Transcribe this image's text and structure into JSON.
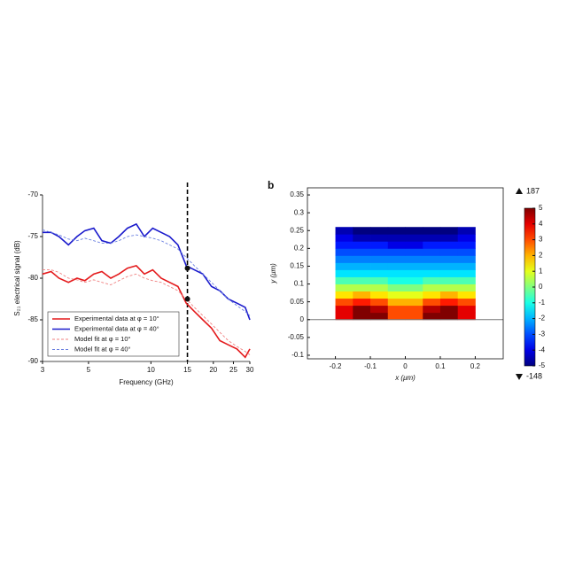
{
  "chart_data": [
    {
      "type": "line",
      "xlabel": "Frequency (GHz)",
      "ylabel": "S₂₁ electrical signal (dB)",
      "x": [
        3,
        3.3,
        3.6,
        4,
        4.4,
        4.8,
        5.3,
        5.8,
        6.4,
        7,
        7.7,
        8.5,
        9.3,
        10.2,
        11.2,
        12.3,
        13.5,
        14.8,
        16.2,
        17.8,
        19.6,
        21.5,
        23.6,
        26,
        28.5,
        30
      ],
      "log_x": true,
      "xlim": [
        3,
        30
      ],
      "xticks": [
        3,
        5,
        10,
        15,
        20,
        25,
        30
      ],
      "ylim": [
        -90,
        -70
      ],
      "yticks": [
        -90,
        -85,
        -80,
        -75,
        -70
      ],
      "legend": "lower left",
      "vline": 15,
      "markers": [
        {
          "x": 15,
          "y": -78.8
        },
        {
          "x": 15,
          "y": -82.5
        }
      ],
      "series": [
        {
          "name": "Experimental data at φ = 10°",
          "color": "#e41a1c",
          "dashed": false,
          "values": [
            -79.5,
            -79.2,
            -80,
            -80.5,
            -80,
            -80.3,
            -79.5,
            -79.2,
            -80,
            -79.5,
            -78.8,
            -78.5,
            -79.5,
            -79,
            -80,
            -80.5,
            -81,
            -83,
            -84,
            -85,
            -86,
            -87.5,
            -88,
            -88.5,
            -89.5,
            -88.5
          ]
        },
        {
          "name": "Experimental data at φ = 40°",
          "color": "#1a1acc",
          "dashed": false,
          "values": [
            -74.5,
            -74.5,
            -75,
            -76,
            -75,
            -74.3,
            -74,
            -75.5,
            -75.8,
            -75,
            -74,
            -73.5,
            -75,
            -74,
            -74.5,
            -75,
            -76,
            -78.5,
            -79,
            -79.5,
            -81,
            -81.5,
            -82.5,
            -83,
            -83.5,
            -85
          ]
        },
        {
          "name": "Model fit at φ = 10°",
          "color": "#f08080",
          "dashed": true,
          "values": [
            -79,
            -79,
            -79.3,
            -80,
            -80.2,
            -80.5,
            -80.2,
            -80.5,
            -80.8,
            -80.3,
            -79.8,
            -79.5,
            -80,
            -80.3,
            -80.5,
            -81,
            -81.5,
            -82.5,
            -83.5,
            -84.5,
            -85.5,
            -86.5,
            -87.5,
            -88.2,
            -88.8,
            -89.2
          ]
        },
        {
          "name": "Model fit at φ = 40°",
          "color": "#6a7fe0",
          "dashed": true,
          "values": [
            -74.2,
            -74.5,
            -74.8,
            -75.3,
            -75.5,
            -75.2,
            -75.5,
            -75.8,
            -75.8,
            -75.5,
            -75,
            -74.8,
            -75,
            -75.2,
            -75.5,
            -76,
            -76.5,
            -77.5,
            -78.5,
            -79.5,
            -80.5,
            -81.5,
            -82.5,
            -83.3,
            -84,
            -84.5
          ]
        }
      ]
    },
    {
      "type": "heatmap",
      "panel_label": "b",
      "xlabel": "x (μm)",
      "ylabel": "y (μm)",
      "xlim": [
        -0.28,
        0.28
      ],
      "xticks": [
        -0.2,
        -0.1,
        0,
        0.1,
        0.2
      ],
      "ylim": [
        -0.11,
        0.37
      ],
      "yticks": [
        -0.1,
        -0.05,
        0,
        0.05,
        0.1,
        0.15,
        0.2,
        0.25,
        0.3,
        0.35
      ],
      "x": [
        -0.175,
        -0.125,
        -0.075,
        -0.025,
        0.025,
        0.075,
        0.125,
        0.175
      ],
      "y": [
        0.01,
        0.03,
        0.05,
        0.07,
        0.09,
        0.11,
        0.13,
        0.15,
        0.17,
        0.19,
        0.21,
        0.23,
        0.25
      ],
      "values": [
        [
          4,
          5,
          5,
          3,
          3,
          5,
          5,
          4
        ],
        [
          4,
          5,
          4.5,
          3,
          3,
          4.5,
          5,
          4
        ],
        [
          3,
          3.5,
          3,
          2,
          2,
          3,
          3.5,
          3
        ],
        [
          1.5,
          2,
          1.5,
          1,
          1,
          1.5,
          2,
          1.5
        ],
        [
          0.5,
          0.5,
          0.5,
          0,
          0,
          0.5,
          0.5,
          0.5
        ],
        [
          -0.5,
          -0.5,
          -0.5,
          -1,
          -1,
          -0.5,
          -0.5,
          -0.5
        ],
        [
          -1.5,
          -1.5,
          -1.5,
          -1.5,
          -1.5,
          -1.5,
          -1.5,
          -1.5
        ],
        [
          -2,
          -2,
          -2,
          -2,
          -2,
          -2,
          -2,
          -2
        ],
        [
          -2.5,
          -2.5,
          -2.5,
          -2.5,
          -2.5,
          -2.5,
          -2.5,
          -2.5
        ],
        [
          -3,
          -3,
          -3,
          -3,
          -3,
          -3,
          -3,
          -3
        ],
        [
          -3.5,
          -3.5,
          -3.5,
          -4,
          -4,
          -3.5,
          -3.5,
          -3.5
        ],
        [
          -4,
          -4.5,
          -4.5,
          -4.5,
          -4.5,
          -4.5,
          -4.5,
          -4
        ],
        [
          -4.5,
          -5,
          -5,
          -5,
          -5,
          -5,
          -5,
          -4.5
        ]
      ],
      "colormap": "jet",
      "clim": [
        -5,
        5
      ],
      "colorbar_ticks": [
        -5,
        -4,
        -3,
        -2,
        -1,
        0,
        1,
        2,
        3,
        4,
        5
      ],
      "colorbar_max": 187,
      "colorbar_min": -148
    }
  ]
}
